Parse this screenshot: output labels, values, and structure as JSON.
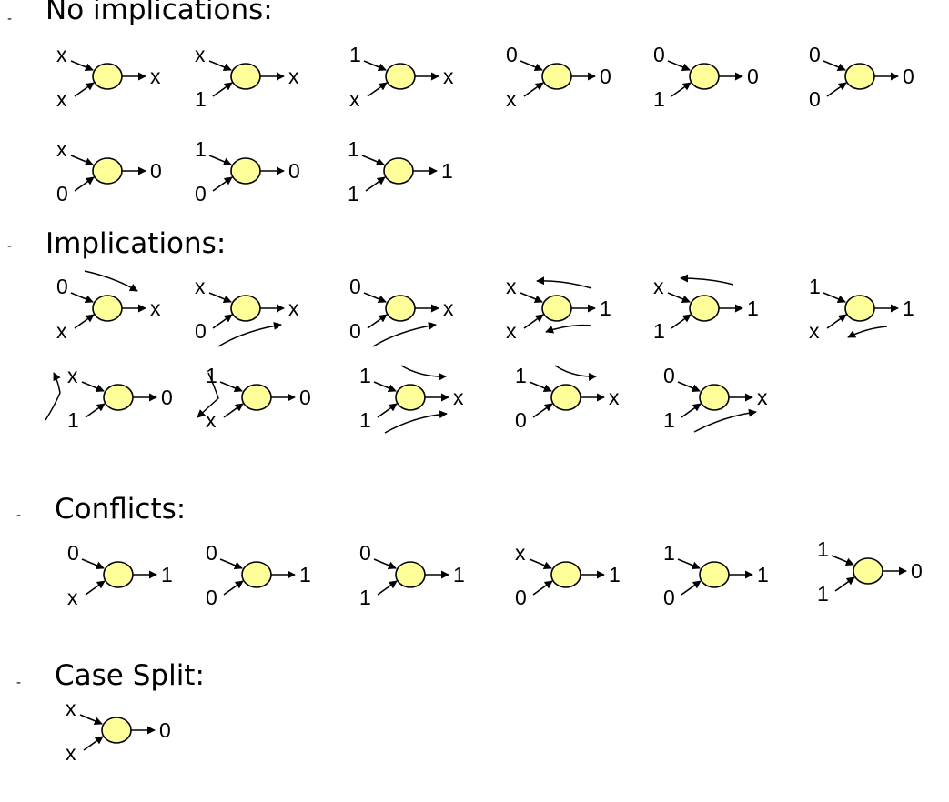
{
  "sections": [
    {
      "bullet": "-",
      "title": "No implications:"
    },
    {
      "bullet": "-",
      "title": "Implications:"
    },
    {
      "bullet": "-",
      "title": "Conflicts:"
    },
    {
      "bullet": "-",
      "title": "Case Split:"
    }
  ],
  "colors": {
    "gate_fill": "#FFFF99",
    "stroke": "#000000",
    "background": "#FFFFFF"
  },
  "gates": [
    {
      "section": "No implications:",
      "in_top": "x",
      "in_bottom": "x",
      "out": "x",
      "implication": "none"
    },
    {
      "section": "No implications:",
      "in_top": "x",
      "in_bottom": "1",
      "out": "x",
      "implication": "none"
    },
    {
      "section": "No implications:",
      "in_top": "1",
      "in_bottom": "x",
      "out": "x",
      "implication": "none"
    },
    {
      "section": "No implications:",
      "in_top": "0",
      "in_bottom": "x",
      "out": "0",
      "implication": "none"
    },
    {
      "section": "No implications:",
      "in_top": "0",
      "in_bottom": "1",
      "out": "0",
      "implication": "none"
    },
    {
      "section": "No implications:",
      "in_top": "0",
      "in_bottom": "0",
      "out": "0",
      "implication": "none"
    },
    {
      "section": "No implications:",
      "in_top": "x",
      "in_bottom": "0",
      "out": "0",
      "implication": "none"
    },
    {
      "section": "No implications:",
      "in_top": "1",
      "in_bottom": "0",
      "out": "0",
      "implication": "none"
    },
    {
      "section": "No implications:",
      "in_top": "1",
      "in_bottom": "1",
      "out": "1",
      "implication": "none"
    },
    {
      "section": "Implications:",
      "in_top": "0",
      "in_bottom": "x",
      "out": "x",
      "implication": "forward from top input to output"
    },
    {
      "section": "Implications:",
      "in_top": "x",
      "in_bottom": "0",
      "out": "x",
      "implication": "forward from bottom input to output"
    },
    {
      "section": "Implications:",
      "in_top": "0",
      "in_bottom": "0",
      "out": "x",
      "implication": "forward from bottom input to output"
    },
    {
      "section": "Implications:",
      "in_top": "x",
      "in_bottom": "x",
      "out": "1",
      "implication": "backward from output to both inputs"
    },
    {
      "section": "Implications:",
      "in_top": "x",
      "in_bottom": "1",
      "out": "1",
      "implication": "backward from output to top input"
    },
    {
      "section": "Implications:",
      "in_top": "1",
      "in_bottom": "x",
      "out": "1",
      "implication": "backward from output to bottom input"
    },
    {
      "section": "Implications:",
      "in_top": "x",
      "in_bottom": "1",
      "out": "0",
      "implication": "bottom input to top input"
    },
    {
      "section": "Implications:",
      "in_top": "1",
      "in_bottom": "x",
      "out": "0",
      "implication": "top input to bottom input"
    },
    {
      "section": "Implications:",
      "in_top": "1",
      "in_bottom": "1",
      "out": "x",
      "implication": "forward from both inputs to output"
    },
    {
      "section": "Implications:",
      "in_top": "1",
      "in_bottom": "0",
      "out": "x",
      "implication": "forward from top input to output"
    },
    {
      "section": "Implications:",
      "in_top": "0",
      "in_bottom": "1",
      "out": "x",
      "implication": "forward from bottom input to output"
    },
    {
      "section": "Conflicts:",
      "in_top": "0",
      "in_bottom": "x",
      "out": "1",
      "implication": "none"
    },
    {
      "section": "Conflicts:",
      "in_top": "0",
      "in_bottom": "0",
      "out": "1",
      "implication": "none"
    },
    {
      "section": "Conflicts:",
      "in_top": "0",
      "in_bottom": "1",
      "out": "1",
      "implication": "none"
    },
    {
      "section": "Conflicts:",
      "in_top": "x",
      "in_bottom": "0",
      "out": "1",
      "implication": "none"
    },
    {
      "section": "Conflicts:",
      "in_top": "1",
      "in_bottom": "0",
      "out": "1",
      "implication": "none"
    },
    {
      "section": "Conflicts:",
      "in_top": "1",
      "in_bottom": "1",
      "out": "0",
      "implication": "none"
    },
    {
      "section": "Case Split:",
      "in_top": "x",
      "in_bottom": "x",
      "out": "0",
      "implication": "none"
    }
  ]
}
